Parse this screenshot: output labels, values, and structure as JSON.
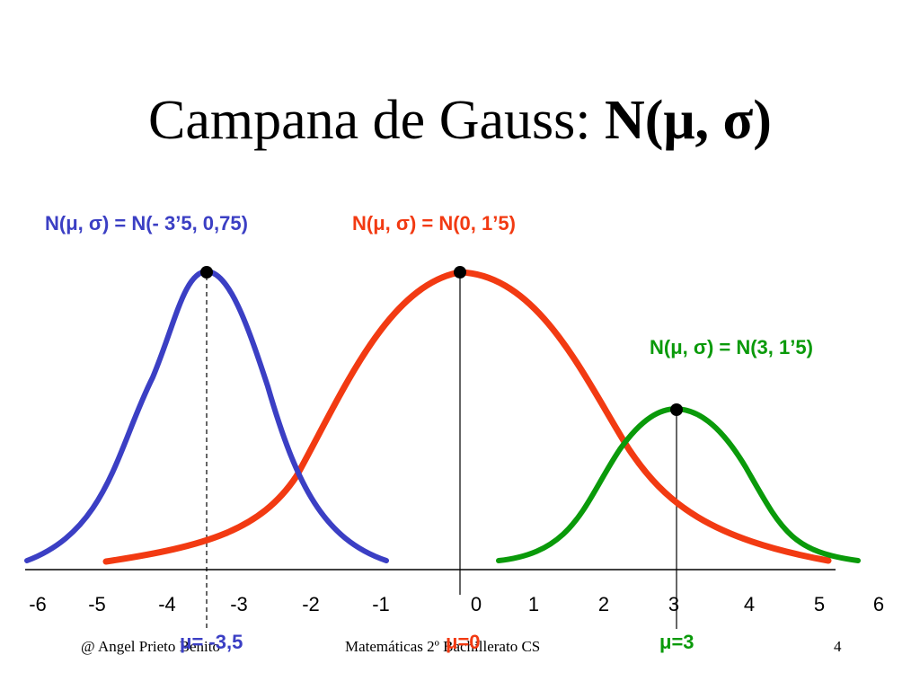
{
  "title": {
    "regular": "Campana de Gauss: ",
    "bold": "N(μ, σ)"
  },
  "colors": {
    "blue": "#3b3fc4",
    "red": "#f23a12",
    "green": "#0a9a0a",
    "axis": "#000000"
  },
  "curves": [
    {
      "id": "blue",
      "label": "N(μ, σ) = N(- 3’5, 0,75)",
      "mu": -3.5,
      "mu_label": "μ= -3,5"
    },
    {
      "id": "red",
      "label": "N(μ, σ) = N(0, 1’5)",
      "mu": 0,
      "mu_label": "μ=0"
    },
    {
      "id": "green",
      "label": "N(μ, σ) = N(3, 1’5)",
      "mu": 3,
      "mu_label": "μ=3"
    }
  ],
  "axis": {
    "ticks": [
      "-6",
      "-5",
      "-4",
      "-3",
      "-2",
      "-1",
      "0",
      "1",
      "2",
      "3",
      "4",
      "5",
      "6"
    ]
  },
  "footer": {
    "author": "@  Angel Prieto Benito",
    "course": "Matemáticas  2º Bachillerato CS",
    "page": "4"
  }
}
